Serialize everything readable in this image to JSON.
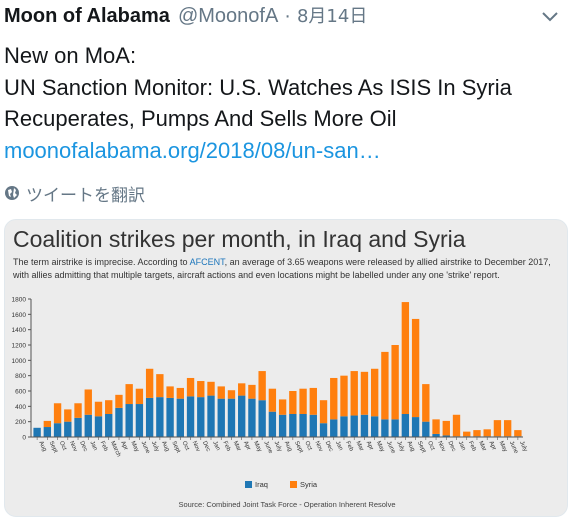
{
  "tweet": {
    "author": "Moon of Alabama",
    "handle": "@MoonofA",
    "separator": "·",
    "date": "8月14日",
    "lines": [
      "New on MoA:",
      "UN Sanction Monitor: U.S. Watches As ISIS In Syria",
      "Recuperates, Pumps And Sells More Oil"
    ],
    "link": "moonofalabama.org/2018/08/un-san…",
    "translate_label": "ツイートを翻訳",
    "icons": {
      "menu": "chevron-down-icon",
      "translate": "globe-icon"
    }
  },
  "card": {
    "title": "Coalition strikes per month, in Iraq and Syria",
    "desc_before": "The term airstrike is imprecise. According to ",
    "desc_link": "AFCENT",
    "desc_after": ", an average of 3.65 weapons were released by allied airstrike to December 2017, with allies admitting that multiple targets, aircraft actions and even locations might be labelled under any one 'strike' report.",
    "source": "Source: Combined Joint Task Force - Operation Inherent Resolve"
  },
  "chart_data": {
    "type": "bar",
    "stacked": true,
    "categories": [
      "Aug",
      "Sept",
      "Oct",
      "Nov",
      "Dec",
      "Jan",
      "Feb",
      "March",
      "Apr",
      "May",
      "June",
      "July",
      "Aug",
      "Sept",
      "Oct",
      "Nov",
      "Dec",
      "Jan",
      "Feb",
      "Mar",
      "Apr",
      "May",
      "June",
      "July",
      "Aug",
      "Sept",
      "Oct",
      "Nov",
      "Dec",
      "Jan",
      "Feb",
      "Mar",
      "Apr",
      "May",
      "June",
      "July",
      "Aug",
      "Sept",
      "Oct",
      "Nov",
      "Dec",
      "Jan",
      "Feb",
      "Mar",
      "Apr",
      "May",
      "June",
      "July"
    ],
    "series": [
      {
        "name": "Iraq",
        "color": "#1f77b4",
        "values": [
          120,
          130,
          180,
          200,
          250,
          290,
          270,
          300,
          380,
          430,
          430,
          510,
          520,
          510,
          500,
          530,
          520,
          540,
          500,
          500,
          540,
          500,
          480,
          330,
          290,
          300,
          300,
          290,
          180,
          230,
          270,
          280,
          290,
          270,
          230,
          230,
          300,
          260,
          200,
          40,
          20,
          10,
          10,
          10,
          10,
          10,
          10,
          10
        ]
      },
      {
        "name": "Syria",
        "color": "#ff7f0e",
        "values": [
          0,
          80,
          260,
          160,
          190,
          330,
          190,
          180,
          170,
          260,
          200,
          380,
          300,
          150,
          140,
          240,
          210,
          180,
          160,
          110,
          160,
          180,
          380,
          300,
          200,
          300,
          330,
          350,
          300,
          540,
          530,
          580,
          560,
          620,
          880,
          970,
          1460,
          1280,
          490,
          190,
          190,
          280,
          60,
          80,
          90,
          210,
          210,
          80
        ]
      }
    ],
    "ylim": [
      0,
      1800
    ],
    "yticks": [
      0,
      200,
      400,
      600,
      800,
      1000,
      1200,
      1400,
      1600,
      1800
    ],
    "xlabel": "",
    "ylabel": "",
    "grid": false,
    "legend_position": "bottom"
  }
}
